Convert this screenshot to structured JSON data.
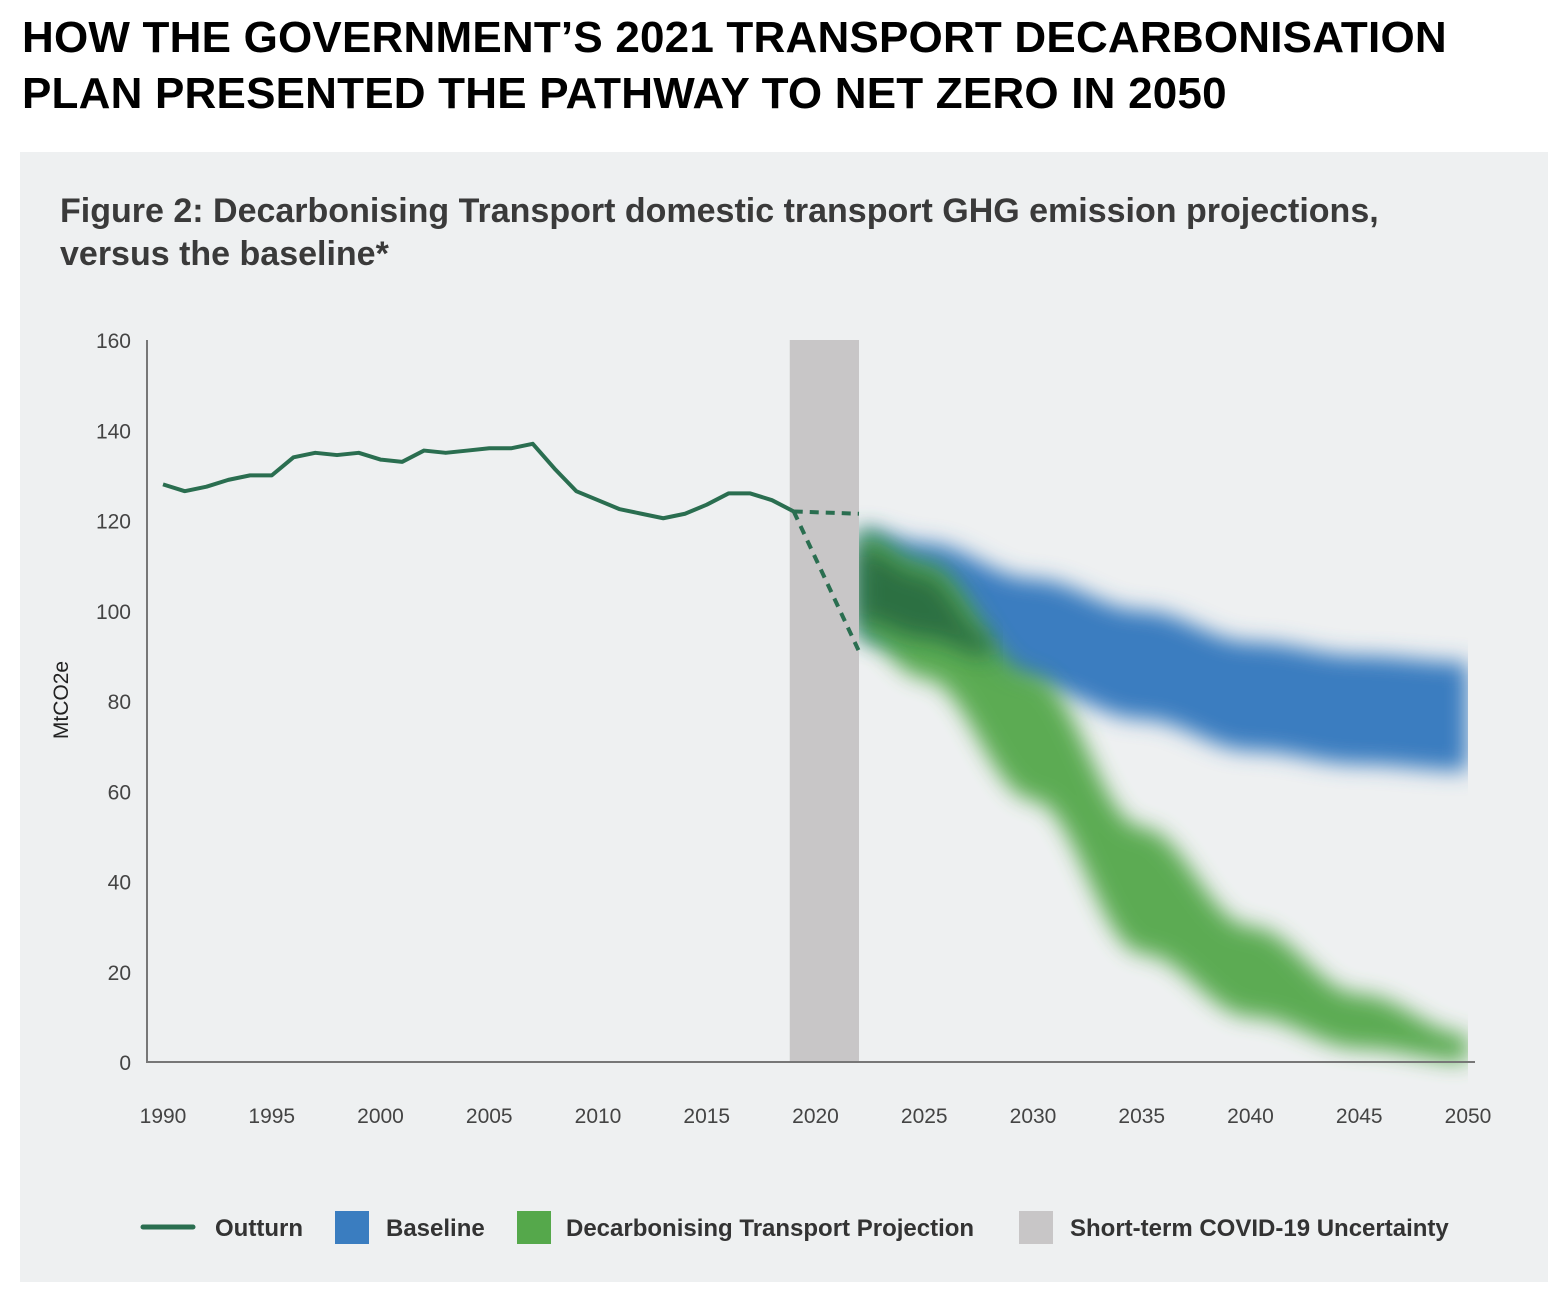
{
  "headline": "HOW THE GOVERNMENT’S 2021 TRANSPORT DECARBONISATION PLAN PRESENTED THE PATHWAY TO NET ZERO IN 2050",
  "chart_data": {
    "type": "line",
    "title": "Figure 2: Decarbonising Transport domestic transport GHG emission projections, versus the baseline*",
    "xlabel": "",
    "ylabel": "MtCO2e",
    "xlim": [
      1990,
      2050
    ],
    "ylim": [
      0,
      160
    ],
    "xticks": [
      1990,
      1995,
      2000,
      2005,
      2010,
      2015,
      2020,
      2025,
      2030,
      2035,
      2040,
      2045,
      2050
    ],
    "yticks": [
      0,
      20,
      40,
      60,
      80,
      100,
      120,
      140,
      160
    ],
    "grid": false,
    "legend_placement": "bottom",
    "colors": {
      "outturn": "#2a6e50",
      "baseline": "#3a7dc0",
      "decarbonising": "#55a84b",
      "covid": "#c8c6c7"
    },
    "outturn": {
      "name": "Outturn",
      "x": [
        1990,
        1991,
        1992,
        1993,
        1994,
        1995,
        1996,
        1997,
        1998,
        1999,
        2000,
        2001,
        2002,
        2003,
        2004,
        2005,
        2006,
        2007,
        2008,
        2009,
        2010,
        2011,
        2012,
        2013,
        2014,
        2015,
        2016,
        2017,
        2018,
        2019
      ],
      "y": [
        128,
        126.5,
        127.5,
        129,
        130,
        130,
        134,
        135,
        134.5,
        135,
        133.5,
        133,
        135.5,
        135,
        135.5,
        136,
        136,
        137,
        131.5,
        126.5,
        124.5,
        122.5,
        121.5,
        120.5,
        121.5,
        123.5,
        126,
        126,
        124.5,
        122
      ]
    },
    "outturn_dashed": [
      {
        "x": [
          2019,
          2022
        ],
        "y": [
          122,
          121.5
        ]
      },
      {
        "x": [
          2019,
          2022
        ],
        "y": [
          122,
          91
        ]
      }
    ],
    "baseline": {
      "name": "Baseline",
      "x": [
        2022,
        2025,
        2030,
        2035,
        2040,
        2045,
        2050
      ],
      "center": [
        106,
        103,
        95,
        88,
        81,
        78,
        76.5
      ],
      "halfwidth": [
        12,
        12,
        12,
        12,
        12,
        12,
        12
      ]
    },
    "decarbonising": {
      "name": "Decarbonising Transport Projection",
      "x": [
        2022,
        2025,
        2030,
        2035,
        2040,
        2045,
        2050
      ],
      "center": [
        106,
        98,
        72,
        38,
        20,
        9,
        3
      ],
      "halfwidth": [
        12,
        13,
        14,
        14,
        10,
        6,
        3
      ]
    },
    "covid_band": {
      "name": "Short-term COVID-19 Uncertainty",
      "x": [
        2019,
        2022
      ]
    },
    "legend": [
      "Outturn",
      "Baseline",
      "Decarbonising Transport Projection",
      "Short-term COVID-19 Uncertainty"
    ]
  }
}
